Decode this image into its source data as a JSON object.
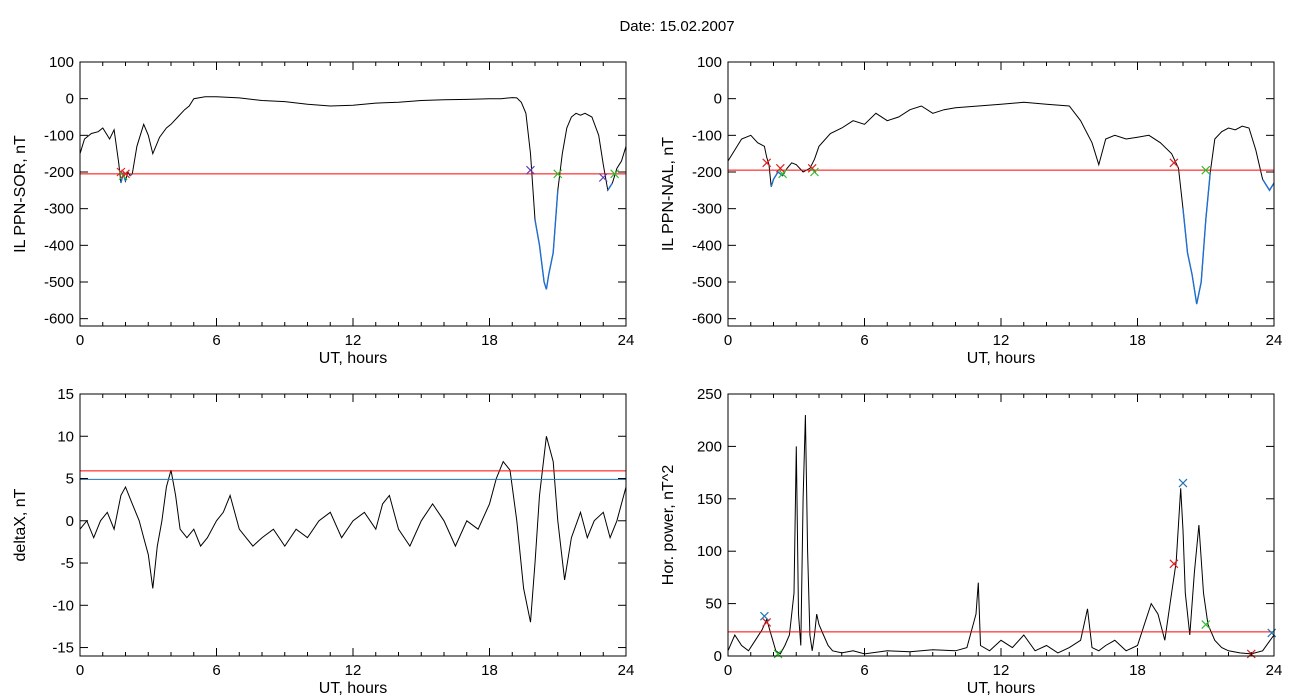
{
  "figure": {
    "title": "Date:  15.02.2007"
  },
  "colors": {
    "data_line": "#000000",
    "threshold_red": "#ff0000",
    "threshold_blue": "#1f77b4",
    "below_threshold": "#1f6fd0",
    "marker_red": "#e02020",
    "marker_green": "#30c030",
    "marker_blue": "#1f77b4",
    "marker_purple": "#6040b0"
  },
  "chart_data": [
    {
      "id": "panel-il-ppn-sor",
      "type": "line",
      "xlabel": "UT, hours",
      "ylabel": "IL PPN-SOR, nT",
      "xlim": [
        0,
        24
      ],
      "ylim": [
        -620,
        100
      ],
      "xticks": [
        0,
        6,
        12,
        18,
        24
      ],
      "yticks": [
        100,
        0,
        -100,
        -200,
        -300,
        -400,
        -500,
        -600
      ],
      "threshold_lines": [
        {
          "y": -205,
          "color": "red"
        }
      ],
      "below_threshold_color": "blue",
      "series": [
        {
          "x": [
            0,
            0.2,
            0.5,
            0.8,
            1.0,
            1.3,
            1.5,
            1.7,
            1.8,
            1.9,
            2.0,
            2.1,
            2.2,
            2.3,
            2.5,
            2.7,
            2.8,
            3.0,
            3.2,
            3.5,
            3.8,
            4.0,
            4.3,
            4.6,
            4.8,
            5.0,
            5.5,
            6,
            7,
            8,
            9,
            10,
            11,
            12,
            13,
            14,
            15,
            16,
            17,
            18,
            18.5,
            19,
            19.2,
            19.4,
            19.6,
            19.8,
            20.0,
            20.2,
            20.4,
            20.5,
            20.6,
            20.8,
            21.0,
            21.2,
            21.4,
            21.6,
            21.8,
            22.0,
            22.2,
            22.5,
            22.8,
            23.0,
            23.2,
            23.4,
            23.6,
            23.8,
            24
          ],
          "y": [
            -150,
            -110,
            -95,
            -90,
            -80,
            -110,
            -85,
            -175,
            -230,
            -205,
            -225,
            -200,
            -210,
            -205,
            -130,
            -90,
            -70,
            -100,
            -150,
            -105,
            -80,
            -70,
            -50,
            -30,
            -20,
            0,
            5,
            5,
            2,
            -5,
            -8,
            -15,
            -20,
            -18,
            -12,
            -10,
            -5,
            -3,
            -2,
            0,
            0,
            3,
            2,
            -10,
            -40,
            -150,
            -330,
            -400,
            -500,
            -520,
            -480,
            -420,
            -250,
            -150,
            -80,
            -50,
            -40,
            -45,
            -40,
            -50,
            -100,
            -180,
            -250,
            -230,
            -190,
            -170,
            -130
          ]
        }
      ],
      "markers": [
        {
          "x": 1.8,
          "y": -200,
          "color": "red"
        },
        {
          "x": 1.9,
          "y": -210,
          "color": "green"
        },
        {
          "x": 2.0,
          "y": -205,
          "color": "red"
        },
        {
          "x": 19.8,
          "y": -195,
          "color": "purple"
        },
        {
          "x": 21.0,
          "y": -205,
          "color": "green"
        },
        {
          "x": 23.0,
          "y": -215,
          "color": "purple"
        },
        {
          "x": 23.5,
          "y": -205,
          "color": "green"
        }
      ]
    },
    {
      "id": "panel-il-ppn-nal",
      "type": "line",
      "xlabel": "UT, hours",
      "ylabel": "IL PPN-NAL, nT",
      "xlim": [
        0,
        24
      ],
      "ylim": [
        -620,
        100
      ],
      "xticks": [
        0,
        6,
        12,
        18,
        24
      ],
      "yticks": [
        100,
        0,
        -100,
        -200,
        -300,
        -400,
        -500,
        -600
      ],
      "threshold_lines": [
        {
          "y": -195,
          "color": "red"
        }
      ],
      "below_threshold_color": "blue",
      "series": [
        {
          "x": [
            0,
            0.3,
            0.6,
            1.0,
            1.3,
            1.6,
            1.7,
            1.8,
            1.9,
            2.0,
            2.2,
            2.4,
            2.6,
            2.8,
            3.0,
            3.3,
            3.6,
            3.8,
            4.0,
            4.5,
            5.0,
            5.5,
            6.0,
            6.5,
            7.0,
            7.5,
            8.0,
            8.5,
            9.0,
            9.5,
            10,
            11,
            12,
            13,
            14,
            15,
            15.5,
            16,
            16.3,
            16.6,
            17,
            17.5,
            18,
            18.5,
            19,
            19.5,
            19.8,
            20.0,
            20.2,
            20.4,
            20.6,
            20.8,
            21.0,
            21.2,
            21.4,
            21.7,
            22.0,
            22.3,
            22.6,
            22.9,
            23.2,
            23.5,
            23.8,
            24
          ],
          "y": [
            -170,
            -140,
            -110,
            -100,
            -120,
            -130,
            -160,
            -180,
            -240,
            -220,
            -200,
            -210,
            -190,
            -175,
            -180,
            -200,
            -190,
            -165,
            -130,
            -95,
            -80,
            -60,
            -70,
            -40,
            -60,
            -50,
            -30,
            -20,
            -40,
            -30,
            -25,
            -20,
            -15,
            -10,
            -15,
            -20,
            -60,
            -120,
            -180,
            -110,
            -100,
            -110,
            -105,
            -100,
            -120,
            -150,
            -190,
            -300,
            -420,
            -480,
            -560,
            -500,
            -330,
            -200,
            -110,
            -90,
            -80,
            -85,
            -75,
            -80,
            -140,
            -220,
            -250,
            -230
          ]
        }
      ],
      "markers": [
        {
          "x": 1.7,
          "y": -175,
          "color": "red"
        },
        {
          "x": 2.3,
          "y": -190,
          "color": "red"
        },
        {
          "x": 2.4,
          "y": -205,
          "color": "green"
        },
        {
          "x": 3.7,
          "y": -190,
          "color": "red"
        },
        {
          "x": 3.8,
          "y": -200,
          "color": "green"
        },
        {
          "x": 19.6,
          "y": -175,
          "color": "red"
        },
        {
          "x": 21.0,
          "y": -195,
          "color": "green"
        }
      ]
    },
    {
      "id": "panel-deltax",
      "type": "line",
      "xlabel": "UT, hours",
      "ylabel": "deltaX, nT",
      "xlim": [
        0,
        24
      ],
      "ylim": [
        -16,
        15
      ],
      "xticks": [
        0,
        6,
        12,
        18,
        24
      ],
      "yticks": [
        15,
        10,
        5,
        0,
        -5,
        -10,
        -15
      ],
      "threshold_lines": [
        {
          "y": 5.9,
          "color": "red"
        },
        {
          "y": 4.9,
          "color": "blue"
        }
      ],
      "series": [
        {
          "x": [
            0,
            0.3,
            0.6,
            0.9,
            1.2,
            1.5,
            1.8,
            2.0,
            2.3,
            2.6,
            2.8,
            3.0,
            3.2,
            3.4,
            3.6,
            3.8,
            4.0,
            4.2,
            4.4,
            4.7,
            5.0,
            5.3,
            5.6,
            6.0,
            6.3,
            6.6,
            7.0,
            7.3,
            7.6,
            8.0,
            8.5,
            9.0,
            9.5,
            10,
            10.5,
            11,
            11.5,
            12,
            12.5,
            13,
            13.3,
            13.6,
            14,
            14.5,
            15,
            15.5,
            16,
            16.5,
            17,
            17.5,
            18,
            18.3,
            18.6,
            18.9,
            19.2,
            19.5,
            19.8,
            20.0,
            20.2,
            20.5,
            20.8,
            21.0,
            21.3,
            21.6,
            22.0,
            22.3,
            22.6,
            23.0,
            23.3,
            23.6,
            24
          ],
          "y": [
            -1,
            0,
            -2,
            0,
            1,
            -1,
            3,
            4,
            2,
            0,
            -2,
            -4,
            -8,
            -3,
            0,
            4,
            6,
            3,
            -1,
            -2,
            -1,
            -3,
            -2,
            0,
            1,
            3,
            -1,
            -2,
            -3,
            -2,
            -1,
            -3,
            -1,
            -2,
            0,
            1,
            -2,
            0,
            1,
            -1,
            2,
            3,
            -1,
            -3,
            0,
            2,
            0,
            -3,
            0,
            -1,
            2,
            5,
            7,
            6,
            0,
            -8,
            -12,
            -5,
            3,
            10,
            7,
            0,
            -7,
            -2,
            1,
            -2,
            0,
            1,
            -2,
            0,
            4
          ]
        }
      ],
      "markers": []
    },
    {
      "id": "panel-hor-power",
      "type": "line",
      "xlabel": "UT, hours",
      "ylabel": "Hor. power, nT^2",
      "xlim": [
        0,
        24
      ],
      "ylim": [
        0,
        250
      ],
      "xticks": [
        0,
        6,
        12,
        18,
        24
      ],
      "yticks": [
        250,
        200,
        150,
        100,
        50,
        0
      ],
      "threshold_lines": [
        {
          "y": 23,
          "color": "red"
        }
      ],
      "series": [
        {
          "x": [
            0,
            0.3,
            0.6,
            0.9,
            1.2,
            1.5,
            1.7,
            1.9,
            2.1,
            2.3,
            2.5,
            2.7,
            2.9,
            3.0,
            3.1,
            3.2,
            3.3,
            3.4,
            3.5,
            3.6,
            3.7,
            3.8,
            3.9,
            4.0,
            4.2,
            4.4,
            4.6,
            5.0,
            5.5,
            6.0,
            7,
            8,
            9,
            10,
            10.5,
            10.9,
            11.0,
            11.1,
            11.5,
            12,
            12.5,
            13,
            13.5,
            14,
            14.5,
            15,
            15.5,
            15.8,
            16.0,
            16.3,
            16.6,
            17,
            17.5,
            18,
            18.3,
            18.6,
            18.9,
            19.2,
            19.5,
            19.7,
            19.9,
            20.0,
            20.1,
            20.3,
            20.5,
            20.7,
            20.9,
            21.1,
            21.4,
            21.7,
            22,
            22.5,
            23,
            23.5,
            24
          ],
          "y": [
            5,
            20,
            10,
            5,
            15,
            25,
            35,
            20,
            5,
            2,
            10,
            20,
            60,
            200,
            40,
            10,
            150,
            230,
            100,
            20,
            5,
            20,
            40,
            30,
            20,
            10,
            5,
            3,
            5,
            2,
            5,
            4,
            6,
            5,
            8,
            40,
            70,
            10,
            5,
            15,
            8,
            20,
            5,
            10,
            3,
            8,
            15,
            45,
            8,
            5,
            10,
            15,
            5,
            10,
            30,
            50,
            40,
            15,
            60,
            90,
            160,
            120,
            60,
            20,
            80,
            125,
            60,
            30,
            15,
            8,
            5,
            3,
            2,
            5,
            20
          ]
        }
      ],
      "markers": [
        {
          "x": 1.6,
          "y": 38,
          "color": "blue"
        },
        {
          "x": 1.7,
          "y": 32,
          "color": "red"
        },
        {
          "x": 2.2,
          "y": 2,
          "color": "green"
        },
        {
          "x": 19.6,
          "y": 88,
          "color": "red"
        },
        {
          "x": 20.0,
          "y": 165,
          "color": "blue"
        },
        {
          "x": 21.0,
          "y": 30,
          "color": "green"
        },
        {
          "x": 23.0,
          "y": 2,
          "color": "red"
        },
        {
          "x": 23.9,
          "y": 22,
          "color": "blue"
        }
      ]
    }
  ]
}
